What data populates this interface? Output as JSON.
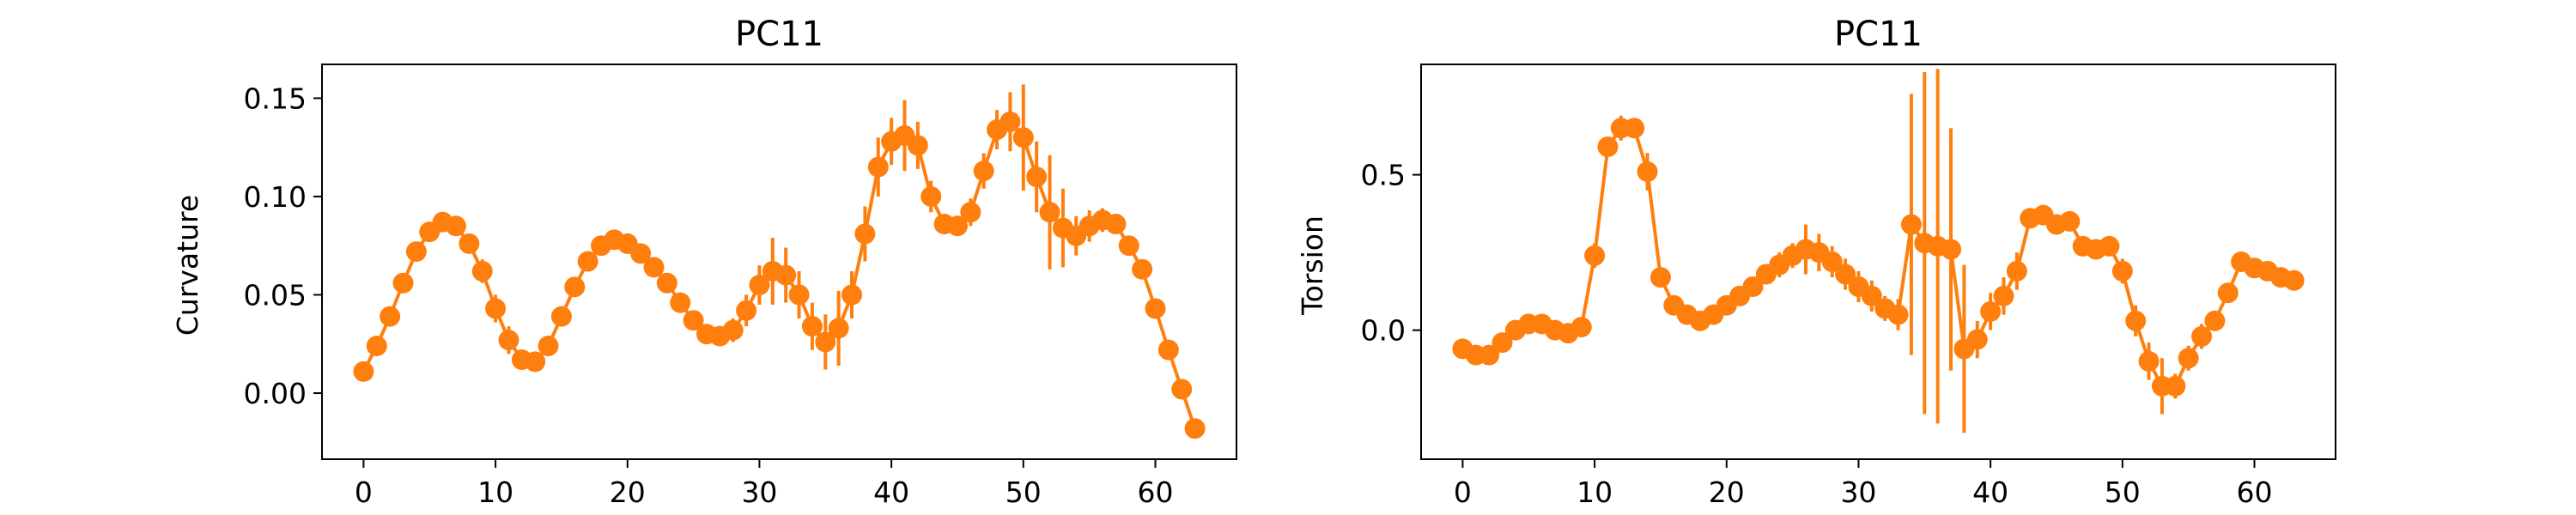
{
  "chart_data": [
    {
      "type": "line",
      "title": "PC11",
      "xlabel": "",
      "ylabel": "Curvature",
      "xlim": [
        -3.15,
        66.15
      ],
      "ylim": [
        -0.0336,
        0.1672
      ],
      "xticks": [
        0,
        10,
        20,
        30,
        40,
        50,
        60
      ],
      "xtick_labels": [
        "0",
        "10",
        "20",
        "30",
        "40",
        "50",
        "60"
      ],
      "yticks": [
        0.0,
        0.05,
        0.1,
        0.15
      ],
      "ytick_labels": [
        "0.00",
        "0.05",
        "0.10",
        "0.15"
      ],
      "color": "#ff7f0e",
      "markers": true,
      "error_bars": true,
      "x": [
        0,
        1,
        2,
        3,
        4,
        5,
        6,
        7,
        8,
        9,
        10,
        11,
        12,
        13,
        14,
        15,
        16,
        17,
        18,
        19,
        20,
        21,
        22,
        23,
        24,
        25,
        26,
        27,
        28,
        29,
        30,
        31,
        32,
        33,
        34,
        35,
        36,
        37,
        38,
        39,
        40,
        41,
        42,
        43,
        44,
        45,
        46,
        47,
        48,
        49,
        50,
        51,
        52,
        53,
        54,
        55,
        56,
        57,
        58,
        59,
        60,
        61,
        62,
        63
      ],
      "y": [
        0.011,
        0.024,
        0.039,
        0.056,
        0.072,
        0.082,
        0.087,
        0.085,
        0.076,
        0.062,
        0.043,
        0.027,
        0.017,
        0.016,
        0.024,
        0.039,
        0.054,
        0.067,
        0.075,
        0.078,
        0.076,
        0.071,
        0.064,
        0.056,
        0.046,
        0.037,
        0.03,
        0.029,
        0.032,
        0.042,
        0.055,
        0.062,
        0.06,
        0.05,
        0.034,
        0.026,
        0.033,
        0.05,
        0.081,
        0.115,
        0.128,
        0.131,
        0.126,
        0.1,
        0.086,
        0.085,
        0.092,
        0.113,
        0.134,
        0.138,
        0.13,
        0.11,
        0.092,
        0.084,
        0.08,
        0.085,
        0.088,
        0.086,
        0.075,
        0.063,
        0.043,
        0.022,
        0.002,
        -0.018
      ],
      "yerr": [
        0.001,
        0.002,
        0.002,
        0.003,
        0.003,
        0.003,
        0.003,
        0.004,
        0.005,
        0.006,
        0.007,
        0.007,
        0.004,
        0.003,
        0.003,
        0.003,
        0.003,
        0.003,
        0.003,
        0.003,
        0.003,
        0.004,
        0.004,
        0.004,
        0.004,
        0.004,
        0.004,
        0.004,
        0.006,
        0.008,
        0.01,
        0.017,
        0.014,
        0.012,
        0.012,
        0.014,
        0.019,
        0.012,
        0.014,
        0.015,
        0.012,
        0.018,
        0.012,
        0.008,
        0.005,
        0.005,
        0.007,
        0.009,
        0.01,
        0.015,
        0.027,
        0.018,
        0.029,
        0.02,
        0.01,
        0.008,
        0.006,
        0.005,
        0.004,
        0.004,
        0.004,
        0.003,
        0.003,
        0.002
      ]
    },
    {
      "type": "line",
      "title": "PC11",
      "xlabel": "",
      "ylabel": "Torsion",
      "xlim": [
        -3.15,
        66.15
      ],
      "ylim": [
        -0.415,
        0.855
      ],
      "xticks": [
        0,
        10,
        20,
        30,
        40,
        50,
        60
      ],
      "xtick_labels": [
        "0",
        "10",
        "20",
        "30",
        "40",
        "50",
        "60"
      ],
      "yticks": [
        0.0,
        0.5
      ],
      "ytick_labels": [
        "0.0",
        "0.5"
      ],
      "color": "#ff7f0e",
      "markers": true,
      "error_bars": true,
      "x": [
        0,
        1,
        2,
        3,
        4,
        5,
        6,
        7,
        8,
        9,
        10,
        11,
        12,
        13,
        14,
        15,
        16,
        17,
        18,
        19,
        20,
        21,
        22,
        23,
        24,
        25,
        26,
        27,
        28,
        29,
        30,
        31,
        32,
        33,
        34,
        35,
        36,
        37,
        38,
        39,
        40,
        41,
        42,
        43,
        44,
        45,
        46,
        47,
        48,
        49,
        50,
        51,
        52,
        53,
        54,
        55,
        56,
        57,
        58,
        59,
        60,
        61,
        62,
        63
      ],
      "y": [
        -0.06,
        -0.08,
        -0.08,
        -0.04,
        0.0,
        0.02,
        0.02,
        0.0,
        -0.01,
        0.01,
        0.24,
        0.59,
        0.65,
        0.65,
        0.51,
        0.17,
        0.08,
        0.05,
        0.03,
        0.05,
        0.08,
        0.11,
        0.14,
        0.18,
        0.21,
        0.24,
        0.26,
        0.25,
        0.22,
        0.18,
        0.14,
        0.11,
        0.07,
        0.05,
        0.34,
        0.28,
        0.27,
        0.26,
        -0.06,
        -0.03,
        0.06,
        0.11,
        0.19,
        0.36,
        0.37,
        0.34,
        0.35,
        0.27,
        0.26,
        0.27,
        0.19,
        0.03,
        -0.1,
        -0.18,
        -0.18,
        -0.09,
        -0.02,
        0.03,
        0.12,
        0.22,
        0.2,
        0.19,
        0.17,
        0.16
      ],
      "yerr": [
        0.01,
        0.01,
        0.02,
        0.02,
        0.02,
        0.02,
        0.02,
        0.02,
        0.02,
        0.02,
        0.04,
        0.03,
        0.04,
        0.02,
        0.06,
        0.03,
        0.02,
        0.02,
        0.03,
        0.03,
        0.03,
        0.03,
        0.03,
        0.03,
        0.04,
        0.04,
        0.08,
        0.06,
        0.05,
        0.05,
        0.05,
        0.05,
        0.04,
        0.05,
        0.42,
        0.55,
        0.57,
        0.39,
        0.27,
        0.06,
        0.06,
        0.06,
        0.06,
        0.03,
        0.03,
        0.03,
        0.03,
        0.03,
        0.03,
        0.03,
        0.04,
        0.05,
        0.06,
        0.09,
        0.04,
        0.04,
        0.04,
        0.03,
        0.03,
        0.02,
        0.02,
        0.02,
        0.02,
        0.02
      ]
    }
  ]
}
